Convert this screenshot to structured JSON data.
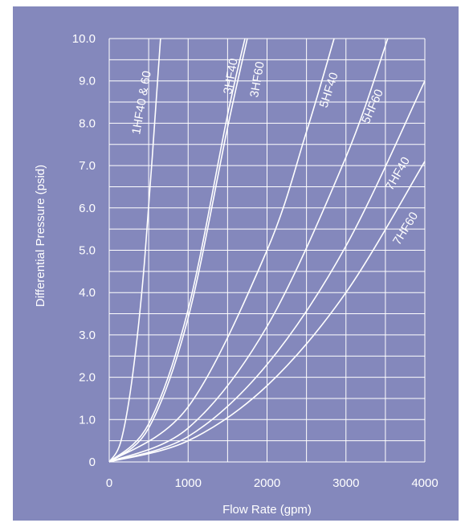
{
  "chart_data": {
    "type": "line",
    "xlabel": "Flow Rate (gpm)",
    "ylabel": "Differential Pressure (psid)",
    "xlim": [
      0,
      4000
    ],
    "ylim": [
      0,
      10
    ],
    "x_ticks": [
      "0",
      "1000",
      "2000",
      "3000",
      "4000"
    ],
    "y_ticks": [
      "0",
      "1.0",
      "2.0",
      "3.0",
      "4.0",
      "5.0",
      "6.0",
      "7.0",
      "8.0",
      "9.0",
      "10.0"
    ],
    "grid": true,
    "colors": {
      "background": "#8488bc",
      "lines": "#ffffff"
    },
    "series": [
      {
        "name": "1HF40 & 60",
        "x": [
          0,
          150,
          300,
          450,
          650
        ],
        "y": [
          0,
          0.5,
          2.1,
          4.8,
          10.0
        ]
      },
      {
        "name": "3HF40",
        "x": [
          0,
          500,
          1000,
          1500,
          1720
        ],
        "y": [
          0,
          0.9,
          3.6,
          8.2,
          10.0
        ]
      },
      {
        "name": "3HF60",
        "x": [
          0,
          500,
          1000,
          1500,
          1750
        ],
        "y": [
          0,
          0.8,
          3.4,
          7.9,
          10.0
        ]
      },
      {
        "name": "5HF40",
        "x": [
          0,
          1000,
          2000,
          2500,
          2850
        ],
        "y": [
          0,
          1.3,
          5.0,
          7.8,
          10.0
        ]
      },
      {
        "name": "5HF60",
        "x": [
          0,
          1000,
          2000,
          3000,
          3530
        ],
        "y": [
          0,
          0.8,
          3.2,
          7.2,
          10.0
        ]
      },
      {
        "name": "7HF40",
        "x": [
          0,
          1000,
          2000,
          3000,
          4000
        ],
        "y": [
          0,
          0.6,
          2.3,
          5.1,
          9.0
        ]
      },
      {
        "name": "7HF60",
        "x": [
          0,
          1000,
          2000,
          3000,
          4000
        ],
        "y": [
          0,
          0.5,
          1.8,
          4.0,
          7.1
        ]
      }
    ]
  }
}
